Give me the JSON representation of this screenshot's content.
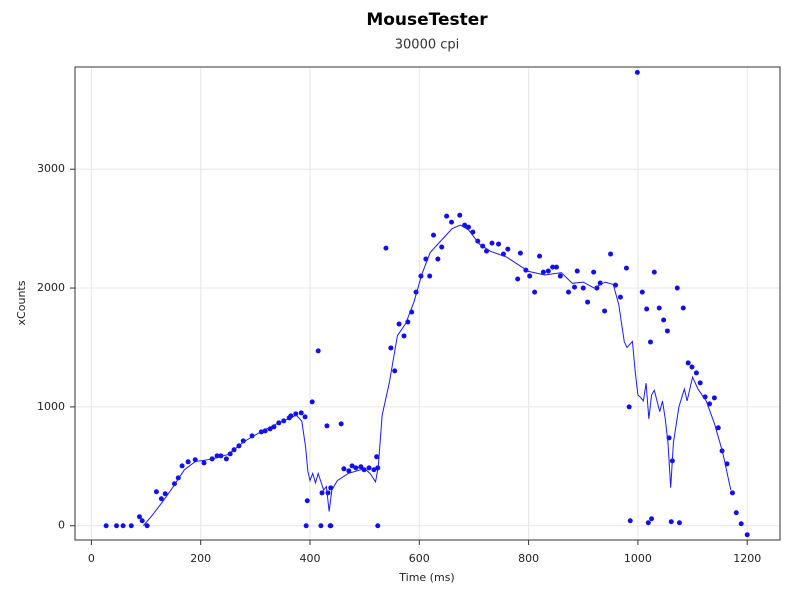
{
  "chart_data": {
    "type": "scatter",
    "title": "MouseTester",
    "subtitle": "30000 cpi",
    "x_label": "Time (ms)",
    "y_label": "xCounts",
    "xlim": [
      -30,
      1260
    ],
    "ylim": [
      -120,
      3860
    ],
    "xticks": [
      0,
      200,
      400,
      600,
      800,
      1000,
      1200
    ],
    "yticks": [
      0,
      1000,
      2000,
      3000
    ],
    "grid": true,
    "series": [
      {
        "style": "markers",
        "color": "#1010ee",
        "x": [
          27,
          46,
          58,
          73,
          88,
          93,
          102,
          119,
          128,
          135,
          152,
          159,
          166,
          177,
          190,
          206,
          221,
          230,
          237,
          247,
          254,
          261,
          270,
          278,
          294,
          311,
          318,
          327,
          334,
          343,
          352,
          362,
          365,
          374,
          384,
          391,
          395,
          393,
          404,
          415,
          422,
          420,
          431,
          433,
          438,
          438,
          437,
          457,
          462,
          471,
          477,
          484,
          493,
          499,
          508,
          517,
          522,
          524,
          524,
          539,
          548,
          555,
          563,
          572,
          579,
          586,
          594,
          603,
          612,
          619,
          626,
          634,
          641,
          650,
          659,
          674,
          683,
          690,
          698,
          707,
          716,
          723,
          733,
          745,
          754,
          762,
          780,
          785,
          795,
          802,
          811,
          820,
          827,
          836,
          844,
          851,
          858,
          873,
          884,
          889,
          900,
          908,
          919,
          925,
          931,
          939,
          950,
          959,
          968,
          979,
          984,
          986,
          999,
          1008,
          1016,
          1023,
          1019,
          1025,
          1030,
          1039,
          1047,
          1054,
          1057,
          1063,
          1061,
          1072,
          1076,
          1083,
          1092,
          1099,
          1107,
          1114,
          1123,
          1131,
          1140,
          1147,
          1154,
          1163,
          1173,
          1180,
          1189,
          1200
        ],
        "values": [
          0,
          0,
          0,
          0,
          76,
          42,
          0,
          286,
          227,
          269,
          353,
          403,
          504,
          538,
          555,
          529,
          563,
          588,
          588,
          563,
          605,
          639,
          672,
          714,
          756,
          790,
          798,
          815,
          832,
          866,
          882,
          908,
          924,
          941,
          950,
          916,
          210,
          0,
          1042,
          1471,
          277,
          0,
          840,
          277,
          319,
          0,
          0,
          857,
          479,
          462,
          504,
          487,
          496,
          471,
          487,
          471,
          580,
          487,
          0,
          2336,
          1496,
          1303,
          1697,
          1597,
          1714,
          1798,
          1966,
          2101,
          2244,
          2101,
          2445,
          2244,
          2345,
          2605,
          2555,
          2613,
          2529,
          2513,
          2471,
          2395,
          2353,
          2311,
          2378,
          2370,
          2286,
          2328,
          2076,
          2294,
          2151,
          2101,
          1966,
          2269,
          2134,
          2143,
          2176,
          2176,
          2101,
          1966,
          2008,
          2143,
          2000,
          1882,
          2134,
          2000,
          2042,
          1807,
          2286,
          2025,
          1924,
          2168,
          1000,
          42,
          3815,
          1966,
          1824,
          1546,
          25,
          59,
          2134,
          1832,
          1731,
          1639,
          739,
          546,
          34,
          2000,
          25,
          1832,
          1370,
          1336,
          1286,
          1202,
          1084,
          1025,
          1076,
          824,
          630,
          521,
          277,
          109,
          17,
          -76
        ]
      },
      {
        "style": "line",
        "color": "#1a1aff",
        "x": [
          95,
          110,
          130,
          150,
          170,
          190,
          220,
          250,
          280,
          310,
          340,
          375,
          385,
          392,
          396,
          400,
          405,
          410,
          415,
          420,
          425,
          430,
          435,
          440,
          450,
          470,
          500,
          510,
          520,
          525,
          532,
          545,
          560,
          575,
          590,
          605,
          620,
          640,
          660,
          675,
          690,
          710,
          730,
          760,
          780,
          800,
          830,
          860,
          880,
          900,
          920,
          940,
          955,
          965,
          975,
          980,
          990,
          995,
          1000,
          1005,
          1010,
          1015,
          1020,
          1025,
          1030,
          1040,
          1045,
          1050,
          1055,
          1060,
          1065,
          1075,
          1085,
          1090,
          1100,
          1110,
          1125,
          1140,
          1155,
          1170
        ],
        "values": [
          0,
          80,
          200,
          330,
          470,
          540,
          560,
          600,
          710,
          790,
          860,
          930,
          880,
          660,
          460,
          380,
          440,
          360,
          440,
          370,
          300,
          330,
          120,
          300,
          380,
          440,
          480,
          440,
          370,
          500,
          930,
          1200,
          1600,
          1700,
          1880,
          2120,
          2300,
          2400,
          2500,
          2530,
          2490,
          2370,
          2310,
          2260,
          2200,
          2140,
          2110,
          2130,
          2040,
          2050,
          2000,
          2050,
          2030,
          1860,
          1550,
          1500,
          1550,
          1300,
          1100,
          1080,
          1050,
          1200,
          900,
          1100,
          1140,
          960,
          1050,
          900,
          700,
          320,
          700,
          1000,
          1150,
          1050,
          1250,
          1150,
          1050,
          860,
          620,
          300
        ]
      }
    ]
  }
}
